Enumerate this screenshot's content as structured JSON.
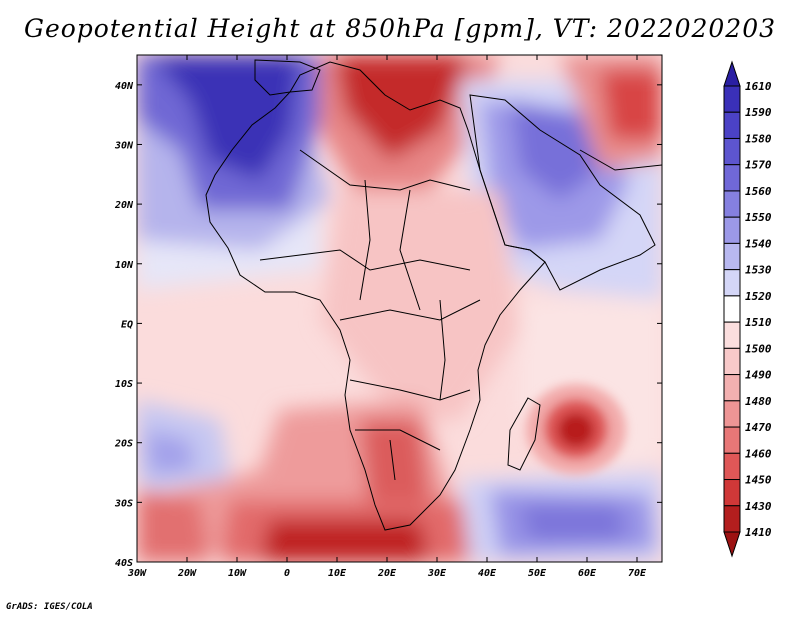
{
  "title": "Geopotential Height at 850hPa [gpm], VT: 2022020203",
  "credit": "GrADS: IGES/COLA",
  "map": {
    "lat_labels": [
      "40N",
      "30N",
      "20N",
      "10N",
      "EQ",
      "10S",
      "20S",
      "30S",
      "40S"
    ],
    "lat_values": [
      40,
      30,
      20,
      10,
      0,
      -10,
      -20,
      -30,
      -40
    ],
    "lon_labels": [
      "30W",
      "20W",
      "10W",
      "0",
      "10E",
      "20E",
      "30E",
      "40E",
      "50E",
      "60E",
      "70E"
    ],
    "lon_values": [
      -30,
      -20,
      -10,
      0,
      10,
      20,
      30,
      40,
      50,
      60,
      70
    ],
    "lon_range": [
      -30,
      75
    ],
    "lat_range": [
      -40,
      45
    ]
  },
  "colorbar": {
    "labels": [
      "1610",
      "1590",
      "1580",
      "1570",
      "1560",
      "1550",
      "1540",
      "1530",
      "1520",
      "1510",
      "1500",
      "1490",
      "1480",
      "1470",
      "1460",
      "1450",
      "1430",
      "1410"
    ],
    "colors": [
      "#2a1fa3",
      "#3a30b8",
      "#4b42c6",
      "#5d55cf",
      "#7068d8",
      "#8580e0",
      "#9c99e8",
      "#b8b8f0",
      "#d4d6f7",
      "#ffffff",
      "#fbdede",
      "#f8c9c9",
      "#f3b0b0",
      "#ee9595",
      "#e87777",
      "#df5757",
      "#d03838",
      "#b31e1e",
      "#9c1212"
    ]
  }
}
